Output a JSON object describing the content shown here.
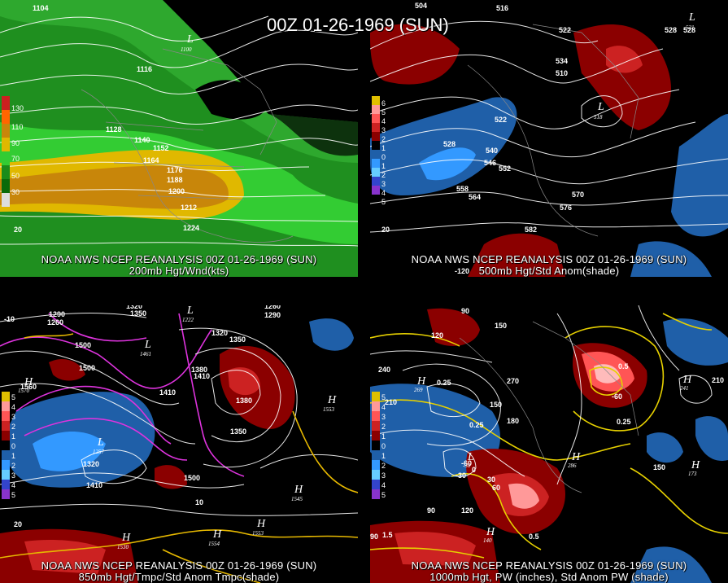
{
  "main_title": "00Z 01-26-1969 (SUN)",
  "panels": [
    {
      "id": "p1",
      "caption_line1": "NOAA NWS NCEP REANALYSIS 00Z 01-26-1969 (SUN)",
      "caption_line2": "200mb Hgt/Wnd(kts)",
      "legend": [
        "130",
        "110",
        "90",
        "70",
        "50",
        "30"
      ],
      "contour_labels": [
        "1104",
        "1116",
        "1128",
        "1140",
        "1152",
        "1164",
        "1176",
        "1188",
        "1200",
        "1212",
        "1224",
        "20"
      ],
      "lows": [
        {
          "letter": "L",
          "value": "1100"
        }
      ]
    },
    {
      "id": "p2",
      "caption_line1": "NOAA NWS NCEP REANALYSIS 00Z 01-26-1969 (SUN)",
      "caption_line2": "500mb Hgt/Std Anom(shade)",
      "legend": [
        "6",
        "5",
        "4",
        "3",
        "2",
        "1",
        "0",
        "1",
        "2",
        "3",
        "4",
        "5"
      ],
      "contour_labels": [
        "504",
        "516",
        "528",
        "534",
        "510",
        "522",
        "528",
        "540",
        "546",
        "552",
        "558",
        "564",
        "570",
        "576",
        "582",
        "522",
        "528",
        "20",
        "-120"
      ],
      "lows": [
        {
          "letter": "L",
          "value": "518"
        },
        {
          "letter": "L",
          "value": "521"
        }
      ]
    },
    {
      "id": "p3",
      "caption_line1": "NOAA NWS NCEP REANALYSIS 00Z 01-26-1969 (SUN)",
      "caption_line2": "850mb Hgt/Tmpc/Std Anom Tmpc(shade)",
      "legend": [
        "5",
        "4",
        "3",
        "2",
        "1",
        "0",
        "1",
        "2",
        "3",
        "4",
        "5"
      ],
      "contour_labels": [
        "1320",
        "1350",
        "1290",
        "1260",
        "1500",
        "1560",
        "1410",
        "1380",
        "1350",
        "1320",
        "1260",
        "1290",
        "1500",
        "1410",
        "1380",
        "1350",
        "1320",
        "1500",
        "1410",
        "10",
        "-10",
        "20"
      ],
      "highs": [
        {
          "letter": "H",
          "value": "1570"
        },
        {
          "letter": "H",
          "value": "1553"
        },
        {
          "letter": "H",
          "value": "1545"
        },
        {
          "letter": "H",
          "value": "1554"
        },
        {
          "letter": "H",
          "value": "1553"
        },
        {
          "letter": "H",
          "value": "1530"
        }
      ],
      "lows": [
        {
          "letter": "L",
          "value": "1257"
        },
        {
          "letter": "L",
          "value": "1222"
        },
        {
          "letter": "L",
          "value": "1461"
        }
      ]
    },
    {
      "id": "p4",
      "caption_line1": "NOAA NWS NCEP REANALYSIS 00Z 01-26-1969 (SUN)",
      "caption_line2": "1000mb Hgt, PW (inches), Std Anom PW (shade)",
      "legend": [
        "5",
        "4",
        "3",
        "2",
        "1",
        "0",
        "1",
        "2",
        "3",
        "4",
        "5"
      ],
      "contour_labels": [
        "90",
        "150",
        "120",
        "240",
        "210",
        "0.25",
        "180",
        "150",
        "270",
        "0.25",
        "-60",
        "-30",
        "0",
        "30",
        "60",
        "90",
        "120",
        "1.5",
        "0.5",
        "0.25",
        "150",
        "210",
        "-60",
        "0.5",
        "90"
      ],
      "highs": [
        {
          "letter": "H",
          "value": "269"
        },
        {
          "letter": "H",
          "value": "286"
        },
        {
          "letter": "H",
          "value": "241"
        },
        {
          "letter": "H",
          "value": "173"
        },
        {
          "letter": "H",
          "value": "140"
        }
      ],
      "lows": [
        {
          "letter": "L",
          "value": "-38"
        }
      ]
    }
  ],
  "colors": {
    "wind_light_green": "#33cc33",
    "wind_dark_green": "#1a8c1a",
    "wind_yellow": "#e6c200",
    "wind_orange": "#c8860a",
    "anom_dark_red": "#8b0000",
    "anom_red": "#cc2222",
    "anom_pink": "#ff9999",
    "anom_blue": "#1f5fa8",
    "anom_light_blue": "#3399ff",
    "temp_magenta": "#dd33dd",
    "pw_yellow": "#e6d000"
  }
}
